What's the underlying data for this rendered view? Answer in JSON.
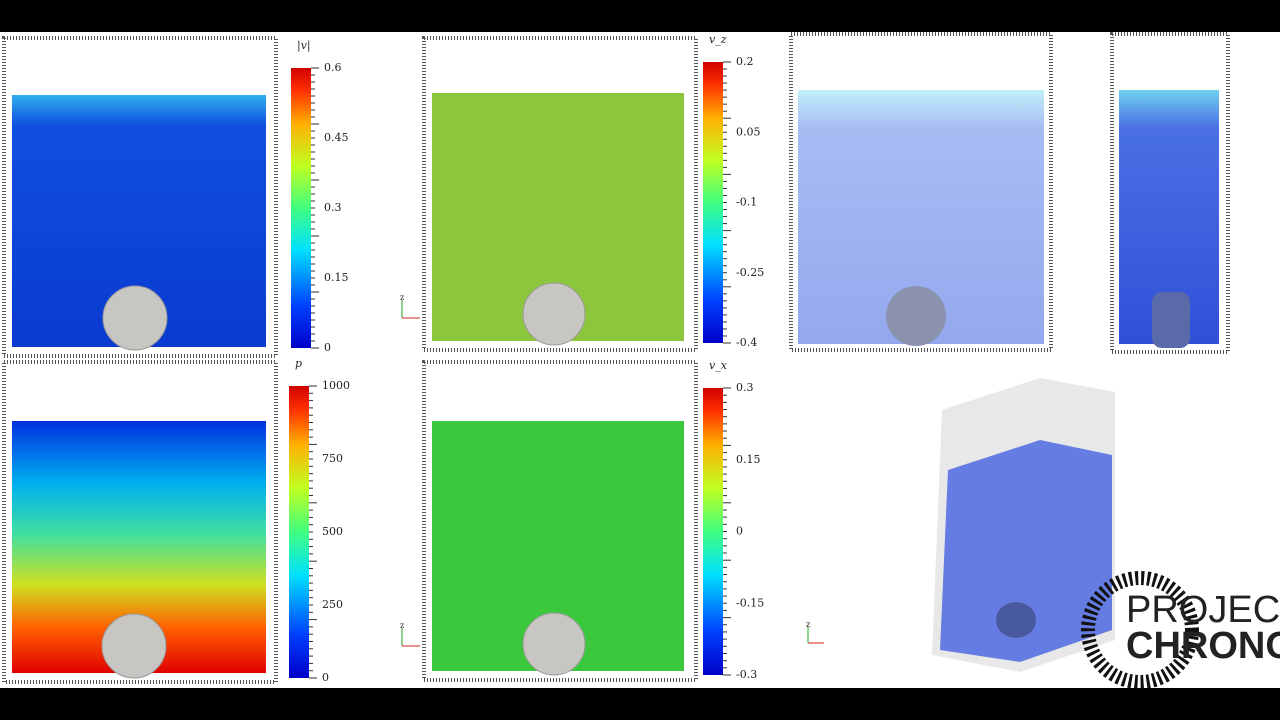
{
  "colorbars": [
    {
      "title": "|v|",
      "ticks": [
        "0.6",
        "0.45",
        "0.3",
        "0.15",
        "0"
      ]
    },
    {
      "title": "v_z",
      "ticks": [
        "0.2",
        "0.05",
        "-0.1",
        "-0.25",
        "-0.4"
      ]
    },
    {
      "title": "p",
      "ticks": [
        "1000",
        "750",
        "500",
        "250",
        "0"
      ]
    },
    {
      "title": "v_x",
      "ticks": [
        "0.3",
        "0.15",
        "0",
        "-0.15",
        "-0.3"
      ]
    }
  ],
  "axes_label": "z",
  "logo": {
    "line1": "PROJECT",
    "line2": "CHRONO"
  }
}
